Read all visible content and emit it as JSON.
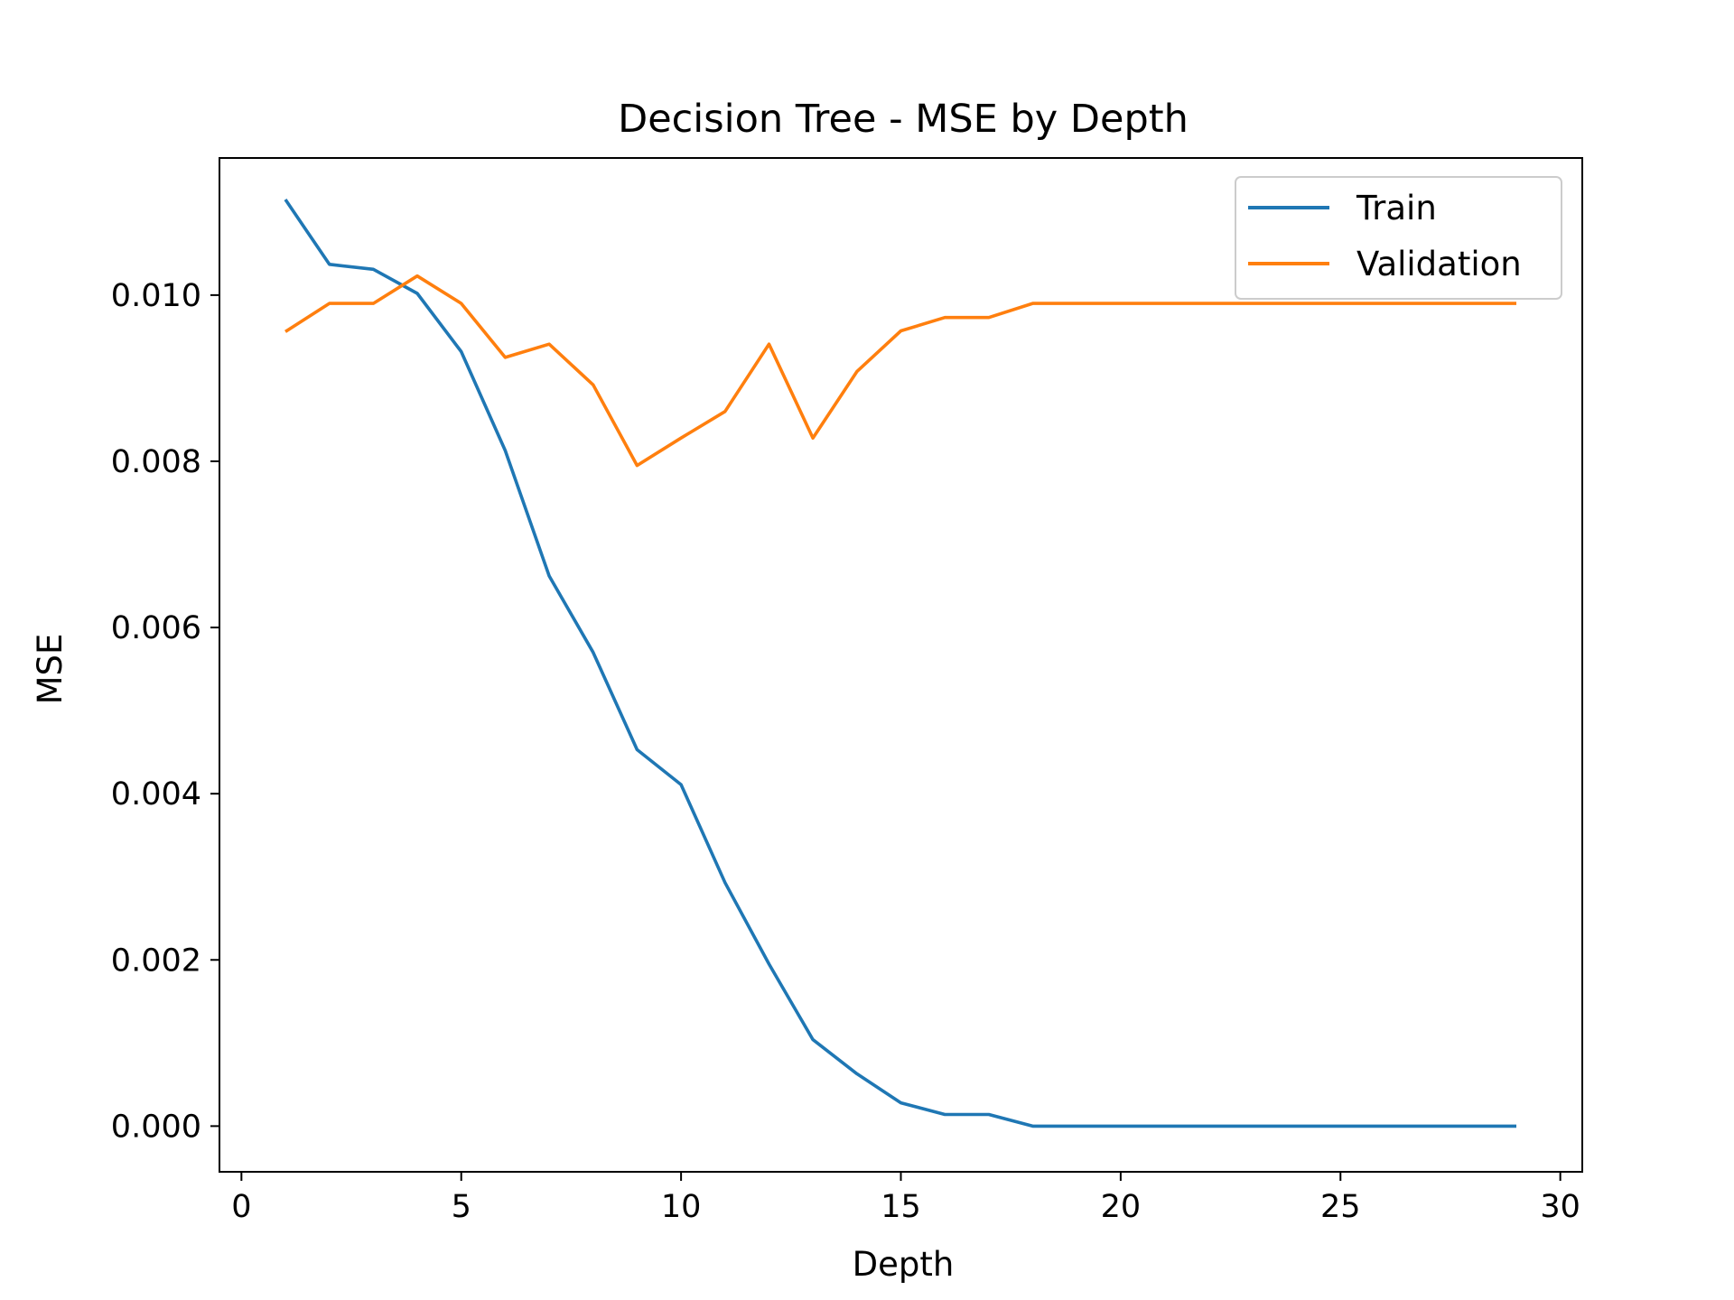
{
  "chart_data": {
    "type": "line",
    "title": "Decision Tree - MSE by Depth",
    "xlabel": "Depth",
    "ylabel": "MSE",
    "xlim": [
      -0.5,
      30.5
    ],
    "ylim": [
      -0.00055,
      0.01165
    ],
    "xticks": [
      0,
      5,
      10,
      15,
      20,
      25,
      30
    ],
    "xtick_labels": [
      "0",
      "5",
      "10",
      "15",
      "20",
      "25",
      "30"
    ],
    "yticks": [
      0.0,
      0.002,
      0.004,
      0.006,
      0.008,
      0.01
    ],
    "ytick_labels": [
      "0.000",
      "0.002",
      "0.004",
      "0.006",
      "0.008",
      "0.010"
    ],
    "grid": false,
    "legend_position": "top-right",
    "x": [
      1,
      2,
      3,
      4,
      5,
      6,
      7,
      8,
      9,
      10,
      11,
      12,
      13,
      14,
      15,
      16,
      17,
      18,
      19,
      20,
      21,
      22,
      23,
      24,
      25,
      26,
      27,
      28,
      29
    ],
    "series": [
      {
        "name": "Train",
        "color": "#1f77b4",
        "values": [
          0.01115,
          0.01037,
          0.01031,
          0.01002,
          0.00932,
          0.00813,
          0.00662,
          0.0057,
          0.00453,
          0.00411,
          0.00293,
          0.00195,
          0.00104,
          0.00063,
          0.00028,
          0.00014,
          0.00014,
          0.0,
          0.0,
          0.0,
          0.0,
          0.0,
          0.0,
          0.0,
          0.0,
          0.0,
          0.0,
          0.0,
          0.0
        ]
      },
      {
        "name": "Validation",
        "color": "#ff7f0e",
        "values": [
          0.00956,
          0.0099,
          0.0099,
          0.01023,
          0.0099,
          0.00925,
          0.00941,
          0.00892,
          0.00795,
          0.00828,
          0.0086,
          0.00941,
          0.00828,
          0.00908,
          0.00957,
          0.00973,
          0.00973,
          0.0099,
          0.0099,
          0.0099,
          0.0099,
          0.0099,
          0.0099,
          0.0099,
          0.0099,
          0.0099,
          0.0099,
          0.0099,
          0.0099
        ]
      }
    ]
  }
}
